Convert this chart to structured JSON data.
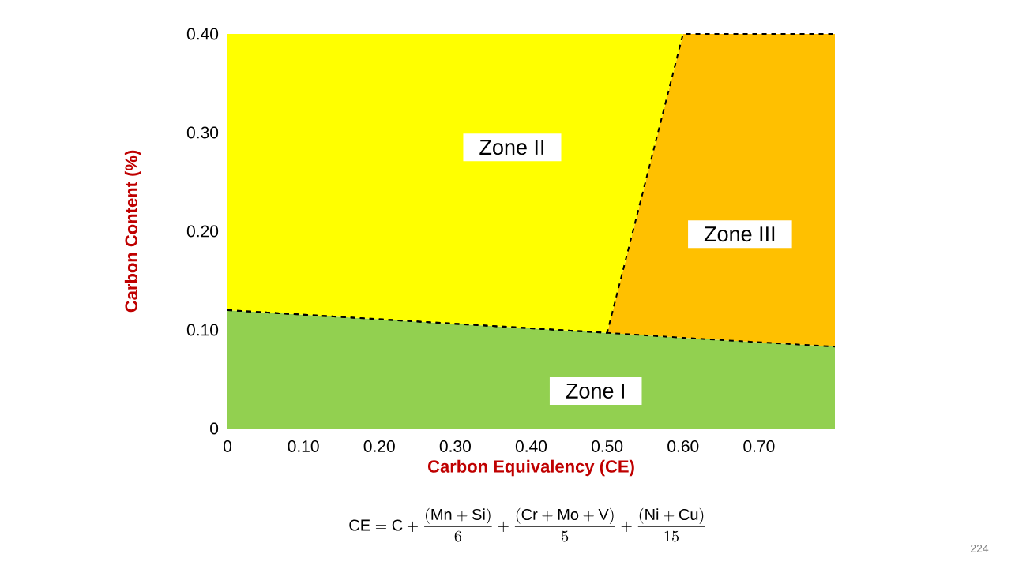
{
  "chart_data": {
    "type": "area",
    "stacked": true,
    "xlabel": "Carbon Equivalency   (CE)",
    "ylabel": "Carbon Content   (%)",
    "x": [
      0,
      0.5,
      0.6,
      0.8
    ],
    "series": [
      {
        "name": "Zone I",
        "color": "#92d050",
        "line_style": "dashed",
        "values": [
          0.12,
          0.097,
          0.092,
          0.083
        ]
      },
      {
        "name": "Zone III",
        "color": "#ffc000",
        "line_style": "dashed",
        "values": [
          0,
          0,
          0.308,
          0.317
        ]
      },
      {
        "name": "Zone II",
        "color": "#ffff00",
        "values": [
          0.28,
          0.303,
          0,
          0
        ]
      }
    ],
    "xlim": [
      0,
      0.8
    ],
    "ylim": [
      0,
      0.4
    ],
    "xticks": [
      0,
      {
        "value": 0.1,
        "label": "0.10"
      },
      {
        "value": 0.2,
        "label": "0.20"
      },
      {
        "value": 0.3,
        "label": "0.30"
      },
      {
        "value": 0.4,
        "label": "0.40"
      },
      {
        "value": 0.5,
        "label": "0.50"
      },
      {
        "value": 0.6,
        "label": "0.60"
      },
      {
        "value": 0.7,
        "label": "0.70"
      }
    ],
    "yticks": [
      0,
      {
        "value": 0.1,
        "label": "0.10"
      },
      {
        "value": 0.2,
        "label": "0.20"
      },
      {
        "value": 0.3,
        "label": "0.30"
      },
      {
        "value": 0.4,
        "label": "0.40"
      }
    ],
    "annotations": [
      "\\mathrm{CE}=\\mathrm{C}+\\frac{(\\mathrm{Mn}+\\mathrm{Si})}{6}+\\frac{(\\mathrm{Cr}+\\mathrm{Mo}+\\mathrm{V})}{5}+\\frac{(\\mathrm{Ni}+\\mathrm{Cu})}{15}",
      "224"
    ]
  }
}
